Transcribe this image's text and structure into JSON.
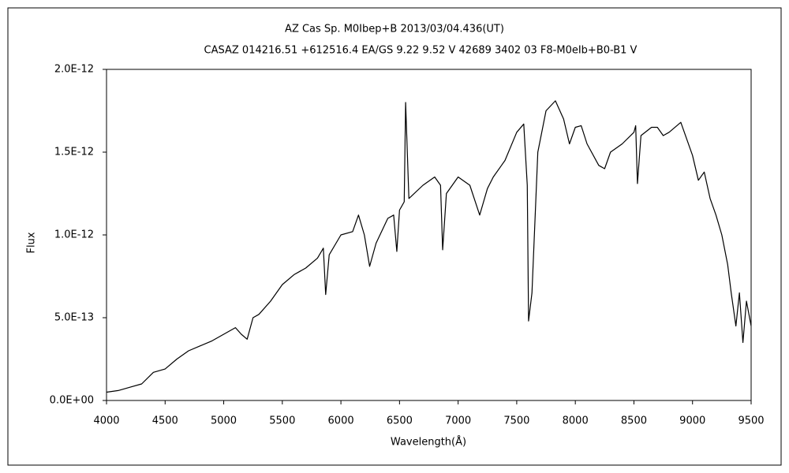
{
  "chart_data": {
    "type": "line",
    "title": "AZ Cas    Sp. M0Ibep+B    2013/03/04.436(UT)",
    "subtitle": "CASAZ 014216.51 +612516.4 EA/GS 9.22 9.52 V 42689 3402 03 F8-M0eIb+B0-B1 V",
    "x_label": "Wavelength(Å)",
    "y_label": "Flux",
    "color": "#000000",
    "grid": false,
    "xlim": [
      4000,
      9500
    ],
    "xticks": [
      4000,
      4500,
      5000,
      5500,
      6000,
      6500,
      7000,
      7500,
      8000,
      8500,
      9000,
      9500
    ],
    "ylim": [
      0,
      2e-12
    ],
    "yticks": [
      {
        "value": 0,
        "label": "0.0E+00"
      },
      {
        "value": 5e-13,
        "label": "5.0E-13"
      },
      {
        "value": 1e-12,
        "label": "1.0E-12"
      },
      {
        "value": 1.5e-12,
        "label": "1.5E-12"
      },
      {
        "value": 2e-12,
        "label": "2.0E-12"
      }
    ],
    "x": [
      4000,
      4100,
      4200,
      4300,
      4400,
      4500,
      4600,
      4700,
      4800,
      4900,
      5000,
      5100,
      5150,
      5200,
      5250,
      5300,
      5400,
      5500,
      5600,
      5700,
      5800,
      5850,
      5870,
      5900,
      6000,
      6100,
      6150,
      6200,
      6245,
      6300,
      6400,
      6450,
      6477,
      6500,
      6540,
      6552,
      6580,
      6700,
      6800,
      6850,
      6868,
      6900,
      7000,
      7100,
      7184,
      7250,
      7300,
      7400,
      7500,
      7560,
      7590,
      7601,
      7630,
      7680,
      7750,
      7830,
      7900,
      7950,
      8000,
      8050,
      8100,
      8200,
      8250,
      8300,
      8400,
      8500,
      8515,
      8530,
      8560,
      8650,
      8700,
      8750,
      8800,
      8900,
      9000,
      9050,
      9100,
      9150,
      9200,
      9250,
      9300,
      9330,
      9370,
      9400,
      9430,
      9460,
      9500
    ],
    "values": [
      5e-14,
      6e-14,
      8e-14,
      1e-13,
      1.7e-13,
      1.9e-13,
      2.5e-13,
      3e-13,
      3.3e-13,
      3.6e-13,
      4e-13,
      4.4e-13,
      4e-13,
      3.7e-13,
      5e-13,
      5.2e-13,
      6e-13,
      7e-13,
      7.6e-13,
      8e-13,
      8.6e-13,
      9.2e-13,
      6.4e-13,
      8.8e-13,
      1e-12,
      1.02e-12,
      1.12e-12,
      1e-12,
      8.1e-13,
      9.5e-13,
      1.1e-12,
      1.12e-12,
      9e-13,
      1.15e-12,
      1.2e-12,
      1.8e-12,
      1.22e-12,
      1.3e-12,
      1.35e-12,
      1.3e-12,
      9.1e-13,
      1.25e-12,
      1.35e-12,
      1.3e-12,
      1.12e-12,
      1.28e-12,
      1.35e-12,
      1.45e-12,
      1.62e-12,
      1.67e-12,
      1.3e-12,
      4.8e-13,
      6.5e-13,
      1.5e-12,
      1.75e-12,
      1.81e-12,
      1.7e-12,
      1.55e-12,
      1.65e-12,
      1.66e-12,
      1.55e-12,
      1.42e-12,
      1.4e-12,
      1.5e-12,
      1.55e-12,
      1.62e-12,
      1.66e-12,
      1.31e-12,
      1.6e-12,
      1.65e-12,
      1.65e-12,
      1.6e-12,
      1.62e-12,
      1.68e-12,
      1.48e-12,
      1.33e-12,
      1.38e-12,
      1.22e-12,
      1.12e-12,
      1e-12,
      8.2e-13,
      6.5e-13,
      4.5e-13,
      6.5e-13,
      3.5e-13,
      6e-13,
      4.5e-13
    ]
  }
}
